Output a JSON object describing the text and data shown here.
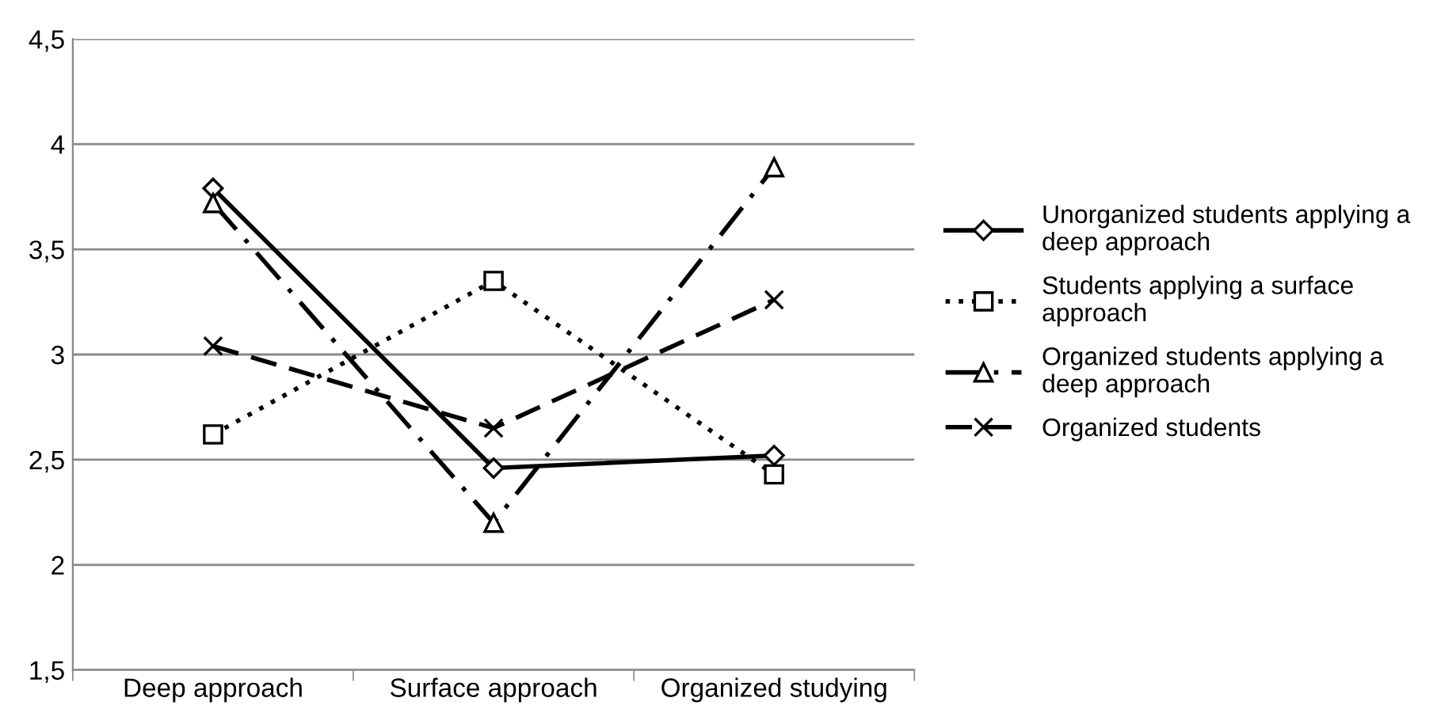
{
  "chart_data": {
    "type": "line",
    "categories": [
      "Deep approach",
      "Surface approach",
      "Organized studying"
    ],
    "series": [
      {
        "name": "Unorganized students applying a\ndeep approach",
        "color": "#000000",
        "values": [
          3.79,
          2.46,
          2.52
        ],
        "marker": "diamond",
        "line_style": "solid"
      },
      {
        "name": "Students applying a surface\napproach",
        "color": "#000000",
        "values": [
          2.62,
          3.35,
          2.43
        ],
        "marker": "square",
        "line_style": "dotted"
      },
      {
        "name": "Organized students applying a\ndeep approach",
        "color": "#000000",
        "values": [
          3.72,
          2.2,
          3.89
        ],
        "marker": "triangle",
        "line_style": "dashdot"
      },
      {
        "name": "Organized students",
        "color": "#000000",
        "values": [
          3.04,
          2.65,
          3.26
        ],
        "marker": "cross",
        "line_style": "dashed"
      }
    ],
    "ylim": [
      1.5,
      4.5
    ],
    "yticks": [
      {
        "value": 1.5,
        "label": "1,5"
      },
      2,
      {
        "value": 2.5,
        "label": "2,5"
      },
      3,
      {
        "value": 3.5,
        "label": "3,5"
      },
      4,
      {
        "value": 4.5,
        "label": "4,5"
      }
    ],
    "grid": "y",
    "legend": "right"
  }
}
